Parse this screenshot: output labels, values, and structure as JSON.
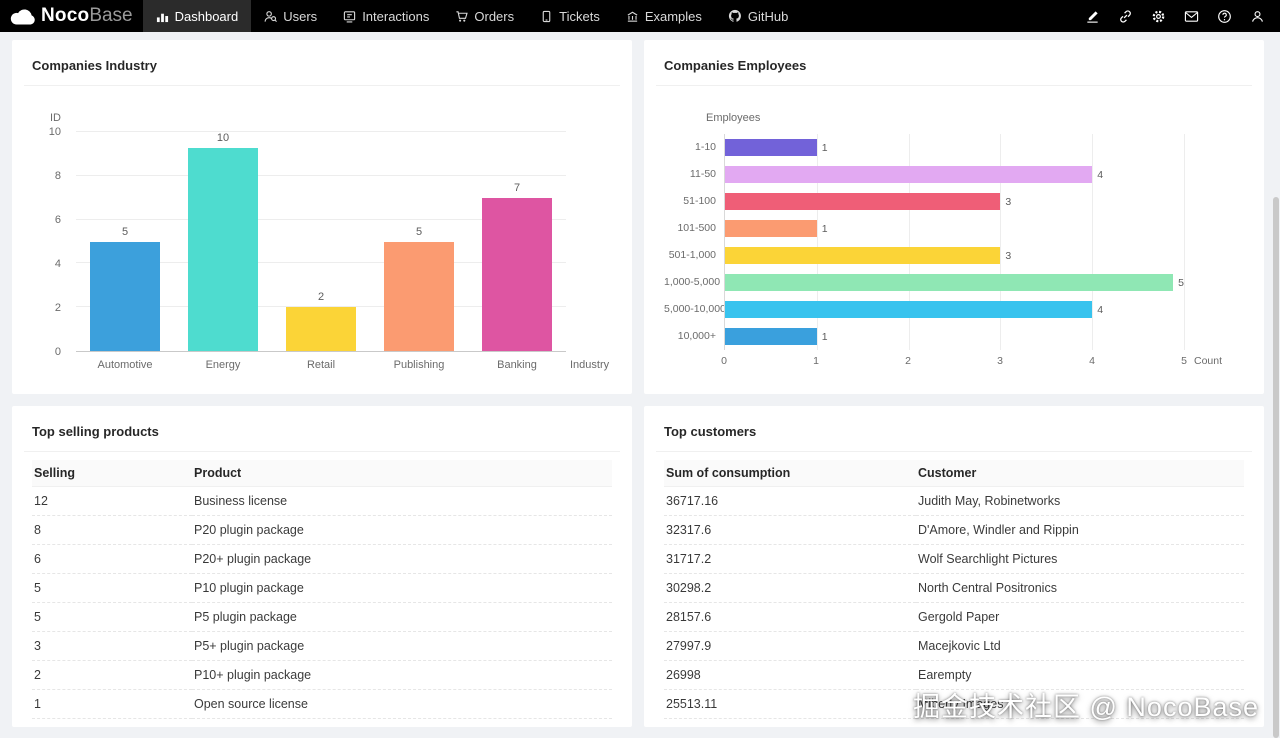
{
  "brand": {
    "name_bold": "Noco",
    "name_light": "Base"
  },
  "nav": {
    "items": [
      {
        "label": "Dashboard",
        "icon": "bar-chart-icon",
        "active": true
      },
      {
        "label": "Users",
        "icon": "user-search-icon",
        "active": false
      },
      {
        "label": "Interactions",
        "icon": "message-icon",
        "active": false
      },
      {
        "label": "Orders",
        "icon": "cart-icon",
        "active": false
      },
      {
        "label": "Tickets",
        "icon": "phone-icon",
        "active": false
      },
      {
        "label": "Examples",
        "icon": "bank-icon",
        "active": false
      },
      {
        "label": "GitHub",
        "icon": "github-icon",
        "active": false
      }
    ],
    "actions": [
      {
        "name": "ui-editor",
        "icon": "highlighter-icon"
      },
      {
        "name": "plugin-link",
        "icon": "link-icon"
      },
      {
        "name": "settings",
        "icon": "gear-icon"
      },
      {
        "name": "notifications",
        "icon": "mail-icon"
      },
      {
        "name": "help",
        "icon": "question-circle-icon"
      },
      {
        "name": "account",
        "icon": "user-icon"
      }
    ]
  },
  "cards": {
    "industry": {
      "title": "Companies Industry"
    },
    "employees": {
      "title": "Companies Employees"
    },
    "products": {
      "title": "Top selling products"
    },
    "customers": {
      "title": "Top customers"
    }
  },
  "chart_data": [
    {
      "type": "bar",
      "orientation": "vertical",
      "title": "Companies Industry",
      "categories": [
        "Automotive",
        "Energy",
        "Retail",
        "Publishing",
        "Banking"
      ],
      "values": [
        5,
        10,
        2,
        5,
        7
      ],
      "colors": [
        "#3CA0DC",
        "#4EDCCF",
        "#FBD437",
        "#FB9B71",
        "#DE55A2"
      ],
      "xlabel": "Industry",
      "ylabel": "ID",
      "ylim": [
        0,
        10
      ],
      "yticks": [
        0,
        2,
        4,
        6,
        8,
        10
      ],
      "grid": true,
      "legend": "none"
    },
    {
      "type": "bar",
      "orientation": "horizontal",
      "title": "Companies Employees",
      "categories": [
        "1-10",
        "11-50",
        "51-100",
        "101-500",
        "501-1,000",
        "1,000-5,000",
        "5,000-10,000",
        "10,000+"
      ],
      "values": [
        1,
        4,
        3,
        1,
        3,
        5,
        4,
        1
      ],
      "colors": [
        "#7262D9",
        "#E2A9F2",
        "#EF5E77",
        "#FB9B71",
        "#FBD437",
        "#8FE7B4",
        "#38C3EE",
        "#3AA0DD"
      ],
      "xlabel": "Count",
      "ylabel": "Employees",
      "xlim": [
        0,
        5
      ],
      "xticks": [
        0,
        1,
        2,
        3,
        4,
        5
      ],
      "grid": true,
      "legend": "none"
    }
  ],
  "tables": {
    "products": {
      "headers": [
        "Selling",
        "Product"
      ],
      "rows": [
        [
          "12",
          "Business license"
        ],
        [
          "8",
          "P20 plugin package"
        ],
        [
          "6",
          "P20+ plugin package"
        ],
        [
          "5",
          "P10 plugin package"
        ],
        [
          "5",
          "P5 plugin package"
        ],
        [
          "3",
          "P5+ plugin package"
        ],
        [
          "2",
          "P10+ plugin package"
        ],
        [
          "1",
          "Open source license"
        ]
      ]
    },
    "customers": {
      "headers": [
        "Sum of consumption",
        "Customer"
      ],
      "rows": [
        [
          "36717.16",
          "Judith May, Robinetworks"
        ],
        [
          "32317.6",
          "D'Amore, Windler and Rippin"
        ],
        [
          "31717.2",
          "Wolf Searchlight Pictures"
        ],
        [
          "30298.2",
          "North Central Positronics"
        ],
        [
          "28157.6",
          "Gergold Paper"
        ],
        [
          "27997.9",
          "Macejkovic Ltd"
        ],
        [
          "26998",
          "Earempty"
        ],
        [
          "25513.11",
          "Miberty Images"
        ]
      ]
    }
  },
  "watermark": {
    "text": "掘金技术社区 @ NocoBase"
  }
}
